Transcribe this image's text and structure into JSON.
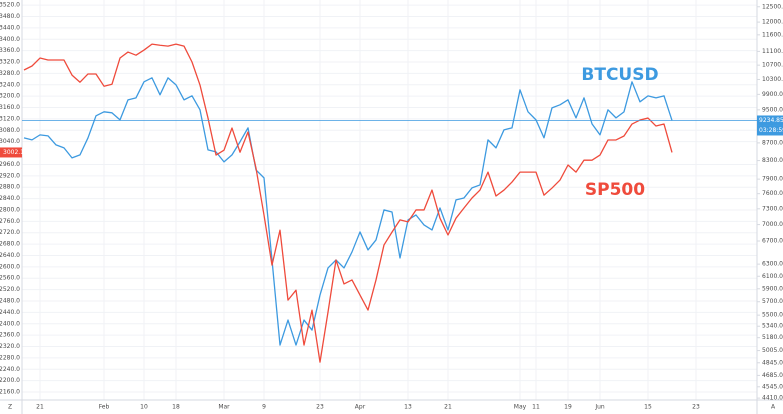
{
  "chart_data": {
    "type": "line",
    "categories": [
      null,
      null,
      "21",
      null,
      null,
      null,
      null,
      null,
      null,
      null,
      "Feb",
      null,
      null,
      null,
      null,
      "10",
      null,
      null,
      null,
      "18",
      null,
      null,
      null,
      null,
      null,
      "Mar",
      null,
      null,
      null,
      null,
      "9",
      null,
      null,
      null,
      null,
      null,
      null,
      "23",
      null,
      null,
      null,
      null,
      "Apr",
      null,
      null,
      null,
      null,
      null,
      "13",
      null,
      null,
      null,
      null,
      "21",
      null,
      null,
      null,
      null,
      null,
      null,
      null,
      null,
      "May",
      null,
      "11",
      null,
      null,
      null,
      "19",
      null,
      null,
      null,
      "Jun",
      null,
      null,
      null,
      null,
      null,
      "15",
      null,
      null,
      null,
      null,
      null,
      "23",
      null
    ],
    "series": [
      {
        "name": "BTCUSD",
        "color": "#3d9ae0",
        "axis": "y2",
        "values": [
          8818,
          8770,
          8888,
          8865,
          8654,
          8585,
          8360,
          8427,
          8818,
          9350,
          9450,
          9425,
          9250,
          9756,
          9809,
          10236,
          10345,
          9888,
          10345,
          10154,
          9756,
          9861,
          9500,
          8540,
          8494,
          8271,
          8427,
          8724,
          9055,
          8096,
          7926,
          6370,
          5079,
          5429,
          5079,
          5429,
          5286,
          5802,
          6236,
          6370,
          6236,
          6508,
          6864,
          6543,
          6719,
          7278,
          7239,
          6404,
          7086,
          7181,
          6993,
          6900,
          7316,
          6900,
          7475,
          7514,
          7718,
          7779,
          8770,
          8585,
          9008,
          9055,
          10020,
          9450,
          9250,
          8818,
          9551,
          9628,
          9756,
          9299,
          9809,
          9153,
          8888,
          9500,
          9299,
          9450,
          10236,
          9705,
          9861,
          9809,
          9861,
          9234.85,
          null,
          null,
          null,
          null
        ]
      },
      {
        "name": "SP500",
        "color": "#ef4b3c",
        "values": [
          3292,
          3306,
          3334,
          3327,
          3327,
          3327,
          3274,
          3249,
          3278,
          3278,
          3235,
          3242,
          3334,
          3355,
          3344,
          3362,
          3383,
          3379,
          3376,
          3383,
          3376,
          3320,
          3239,
          3123,
          2993,
          3010,
          3088,
          3003,
          3074,
          2947,
          2782,
          2606,
          2729,
          2483,
          2518,
          2325,
          2448,
          2265,
          2441,
          2624,
          2540,
          2554,
          2501,
          2448,
          2554,
          2677,
          2722,
          2765,
          2758,
          2800,
          2800,
          2870,
          2771,
          2712,
          2771,
          2807,
          2842,
          2870,
          2933,
          2849,
          2870,
          2898,
          2933,
          2933,
          2933,
          2852,
          2877,
          2905,
          2958,
          2933,
          2975,
          2975,
          2993,
          3046,
          3046,
          3060,
          3102,
          3116,
          3123,
          3095,
          3102,
          3002.1,
          null,
          null,
          null,
          null
        ]
      }
    ],
    "annotations": [
      "BTCUSD",
      "SP500"
    ],
    "ylim": [
      2132,
      3538
    ],
    "yticks": [
      {
        "value": 3520,
        "label": "3520.0"
      },
      {
        "value": 3480,
        "label": "3480.0"
      },
      {
        "value": 3440,
        "label": "3440.0"
      },
      {
        "value": 3400,
        "label": "3400.0"
      },
      {
        "value": 3360,
        "label": "3360.0"
      },
      {
        "value": 3320,
        "label": "3320.0"
      },
      {
        "value": 3280,
        "label": "3280.0"
      },
      {
        "value": 3240,
        "label": "3240.0"
      },
      {
        "value": 3200,
        "label": "3200.0"
      },
      {
        "value": 3160,
        "label": "3160.0"
      },
      {
        "value": 3120,
        "label": "3120.0"
      },
      {
        "value": 3080,
        "label": "3080.0"
      },
      {
        "value": 3040,
        "label": "3040.0"
      },
      {
        "value": 2960,
        "label": "2960.0"
      },
      {
        "value": 2920,
        "label": "2920.0"
      },
      {
        "value": 2880,
        "label": "2880.0"
      },
      {
        "value": 2840,
        "label": "2840.0"
      },
      {
        "value": 2800,
        "label": "2800.0"
      },
      {
        "value": 2760,
        "label": "2760.0"
      },
      {
        "value": 2720,
        "label": "2720.0"
      },
      {
        "value": 2680,
        "label": "2680.0"
      },
      {
        "value": 2640,
        "label": "2640.0"
      },
      {
        "value": 2600,
        "label": "2600.0"
      },
      {
        "value": 2560,
        "label": "2560.0"
      },
      {
        "value": 2520,
        "label": "2520.0"
      },
      {
        "value": 2480,
        "label": "2480.0"
      },
      {
        "value": 2440,
        "label": "2440.0"
      },
      {
        "value": 2400,
        "label": "2400.0"
      },
      {
        "value": 2360,
        "label": "2360.0"
      },
      {
        "value": 2320,
        "label": "2320.0"
      },
      {
        "value": 2280,
        "label": "2280.0"
      },
      {
        "value": 2240,
        "label": "2240.0"
      },
      {
        "value": 2200,
        "label": "2200.0"
      },
      {
        "value": 2160,
        "label": "2160.0"
      }
    ],
    "y2lim": [
      4388,
      12727
    ],
    "y2log": true,
    "y2ticks": [
      {
        "value": 12500,
        "label": "12500.00"
      },
      {
        "value": 12000,
        "label": "12000.00"
      },
      {
        "value": 11600,
        "label": "11600.00"
      },
      {
        "value": 11100,
        "label": "11100.00"
      },
      {
        "value": 10700,
        "label": "10700.00"
      },
      {
        "value": 10300,
        "label": "10300.00"
      },
      {
        "value": 9900,
        "label": "9900.00"
      },
      {
        "value": 9500,
        "label": "9500.00"
      },
      {
        "value": 8700,
        "label": "8700.00"
      },
      {
        "value": 8300,
        "label": "8300.00"
      },
      {
        "value": 7900,
        "label": "7900.00"
      },
      {
        "value": 7600,
        "label": "7600.00"
      },
      {
        "value": 7300,
        "label": "7300.00"
      },
      {
        "value": 7000,
        "label": "7000.00"
      },
      {
        "value": 6700,
        "label": "6700.00"
      },
      {
        "value": 6300,
        "label": "6300.00"
      },
      {
        "value": 6100,
        "label": "6100.00"
      },
      {
        "value": 5900,
        "label": "5900.00"
      },
      {
        "value": 5700,
        "label": "5700.00"
      },
      {
        "value": 5500,
        "label": "5500.00"
      },
      {
        "value": 5340,
        "label": "5340.00"
      },
      {
        "value": 5180,
        "label": "5180.00"
      },
      {
        "value": 5005,
        "label": "5005.00"
      },
      {
        "value": 4845,
        "label": "4845.00"
      },
      {
        "value": 4685,
        "label": "4685.00"
      },
      {
        "value": 4545,
        "label": "4545.00"
      },
      {
        "value": 4410,
        "label": "4410.00"
      }
    ],
    "grid": true,
    "price_tags": {
      "left": 3002.1,
      "right": 9234.85,
      "countdown": "03:28:59"
    }
  },
  "ui": {
    "left_button": "Z",
    "right_button": "A"
  }
}
